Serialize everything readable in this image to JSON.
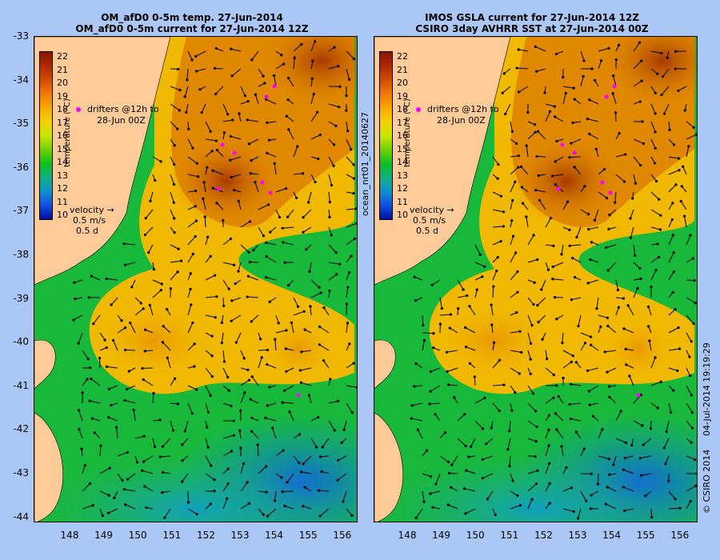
{
  "titles": {
    "left_line1": "OM_afD0 0-5m temp. 27-Jun-2014",
    "left_line2": "OM_afD0 0-5m current for 27-Jun-2014 12Z",
    "right_line1": "IMOS GSLA current for 27-Jun-2014 12Z",
    "right_line2": "CSIRO 3day AVHRR SST at 27-Jun-2014 00Z"
  },
  "axes": {
    "lat_ticks": [
      "-33",
      "-34",
      "-35",
      "-36",
      "-37",
      "-38",
      "-39",
      "-40",
      "-41",
      "-42",
      "-43",
      "-44"
    ],
    "lon_ticks": [
      "148",
      "149",
      "150",
      "151",
      "152",
      "153",
      "154",
      "155",
      "156"
    ]
  },
  "colorbar": {
    "ticks": [
      "22",
      "21",
      "20",
      "19",
      "18",
      "17",
      "16",
      "15",
      "14",
      "13",
      "12",
      "11",
      "10"
    ],
    "label": "temperature (°C)",
    "min": 10,
    "max": 22
  },
  "legend": {
    "drifters_line1": "drifters @12h to",
    "drifters_line2": "28-Jun 00Z",
    "velocity_title": "velocity",
    "velocity_scale": "0.5 m/s",
    "velocity_time": "0.5 d"
  },
  "side_labels": {
    "product": "ocean_nrt01_20140627",
    "timestamp": "04-Jul-2014 19:19:29",
    "copyright": "© CSIRO 2014"
  },
  "colors": {
    "background": "#abc7f5",
    "land": "#ffcc99",
    "drifter": "#ff00ff",
    "arrow": "#000000"
  }
}
